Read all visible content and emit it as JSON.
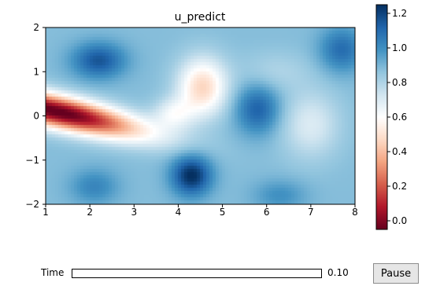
{
  "chart_data": {
    "type": "heatmap",
    "title": "u_predict",
    "xlabel": "",
    "ylabel": "",
    "xlim": [
      1,
      8
    ],
    "ylim": [
      -2,
      2
    ],
    "x_ticks": [
      1,
      2,
      3,
      4,
      5,
      6,
      7,
      8
    ],
    "y_ticks": [
      -2,
      -1,
      0,
      1,
      2
    ],
    "colorbar": {
      "vmin": -0.05,
      "vmax": 1.25,
      "ticks": [
        "0.0",
        "0.2",
        "0.4",
        "0.6",
        "0.8",
        "1.0",
        "1.2"
      ],
      "tick_values": [
        0.0,
        0.2,
        0.4,
        0.6,
        0.8,
        1.0,
        1.2
      ],
      "colormap": "RdBu",
      "colors": [
        "#67001f",
        "#b2182b",
        "#d6604d",
        "#f4a582",
        "#fddbc7",
        "#ffffff",
        "#d1e5f0",
        "#92c5de",
        "#4393c3",
        "#2166ac",
        "#053061"
      ]
    },
    "grid": false
  },
  "controls": {
    "slider_label": "Time",
    "slider_value_text": "0.10",
    "slider_fraction": 0.0,
    "pause_label": "Pause"
  }
}
